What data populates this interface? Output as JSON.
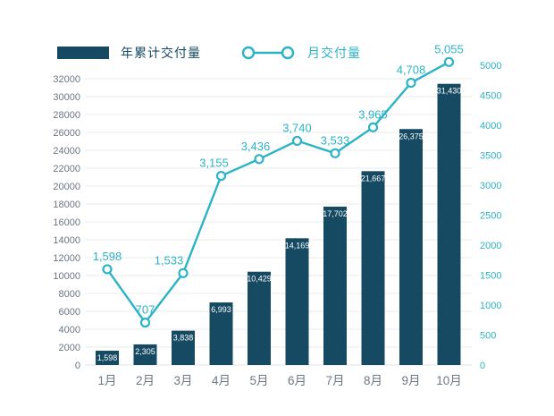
{
  "legend": {
    "bar_label": "年累计交付量",
    "line_label": "月交付量"
  },
  "colors": {
    "bar": "#154a62",
    "line": "#2cb3c5",
    "left_axis_text": "#697683",
    "right_axis_text": "#2cb3c5",
    "month_text": "#6e7882",
    "grid": "#e9ecee",
    "zero_line": "#dde2e5",
    "bar_value_text": "#ffffff"
  },
  "chart_data": {
    "type": "combo",
    "title": "",
    "categories": [
      "1月",
      "2月",
      "3月",
      "4月",
      "5月",
      "6月",
      "7月",
      "8月",
      "9月",
      "10月"
    ],
    "series": [
      {
        "name": "年累计交付量",
        "type": "bar",
        "axis": "left",
        "values": [
          1598,
          2305,
          3838,
          6993,
          10429,
          14169,
          17702,
          21667,
          26375,
          31430
        ],
        "labels": [
          "1,598",
          "2,305",
          "3,838",
          "6,993",
          "10,429",
          "14,169",
          "17,702",
          "21,667",
          "26,375",
          "31,430"
        ]
      },
      {
        "name": "月交付量",
        "type": "line",
        "axis": "right",
        "values": [
          1598,
          707,
          1533,
          3155,
          3436,
          3740,
          3533,
          3965,
          4708,
          5055
        ],
        "labels": [
          "1,598",
          "707",
          "1,533",
          "3,155",
          "3,436",
          "3,740",
          "3,533",
          "3,965",
          "4,708",
          "5,055"
        ]
      }
    ],
    "left_axis": {
      "min": 0,
      "max": 32000,
      "step": 2000
    },
    "right_axis": {
      "min": 0,
      "max": 5000,
      "step": 500
    },
    "grid": true,
    "legend_position": "top"
  }
}
